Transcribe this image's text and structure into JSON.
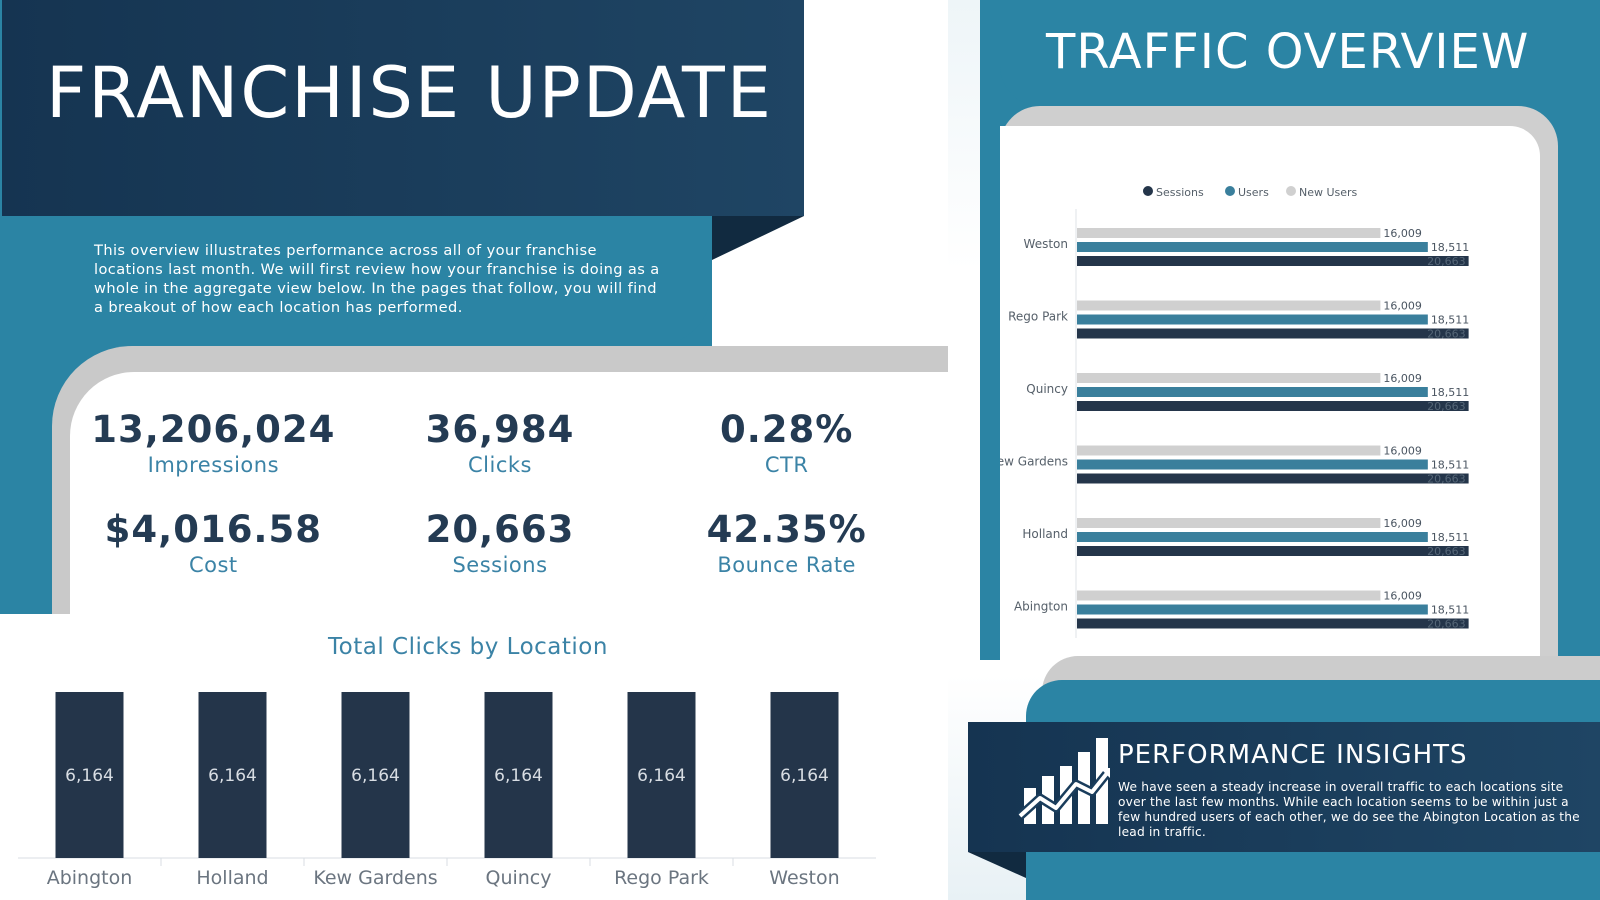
{
  "header": {
    "title": "FRANCHISE UPDATE",
    "intro": "This overview illustrates performance across all of your franchise locations last month. We will first review how your franchise is doing as a whole in the aggregate view below. In the pages that follow, you will find a breakout of how each location has performed."
  },
  "kpis": [
    {
      "value": "13,206,024",
      "label": "Impressions"
    },
    {
      "value": "36,984",
      "label": "Clicks"
    },
    {
      "value": "0.28%",
      "label": "CTR"
    },
    {
      "value": "$4,016.58",
      "label": "Cost"
    },
    {
      "value": "20,663",
      "label": "Sessions"
    },
    {
      "value": "42.35%",
      "label": "Bounce Rate"
    }
  ],
  "traffic": {
    "title": "TRAFFIC OVERVIEW"
  },
  "insights": {
    "title": "PERFORMANCE INSIGHTS",
    "text": "We have seen a steady increase in overall traffic to each locations site over the last few months. While each location seems to be within just a few hundred users of each other, we do see the Abington Location as the lead in traffic.",
    "icon": "growth-chart-icon"
  },
  "colors": {
    "navy": "#24354a",
    "teal": "#3a7f9c",
    "grey": "#d0d0d0",
    "accent": "#2b84a4"
  },
  "chart_data": [
    {
      "type": "bar",
      "title": "Total Clicks by Location",
      "categories": [
        "Abington",
        "Holland",
        "Kew Gardens",
        "Quincy",
        "Rego Park",
        "Weston"
      ],
      "values": [
        6164,
        6164,
        6164,
        6164,
        6164,
        6164
      ],
      "data_labels": [
        "6,164",
        "6,164",
        "6,164",
        "6,164",
        "6,164",
        "6,164"
      ],
      "grid": false
    },
    {
      "type": "bar",
      "orientation": "horizontal",
      "categories": [
        "Weston",
        "Rego Park",
        "Quincy",
        "Kew Gardens",
        "Holland",
        "Abington"
      ],
      "legend": [
        "Sessions",
        "Users",
        "New Users"
      ],
      "legend_position": "top",
      "series": [
        {
          "name": "New Users",
          "values": [
            16009,
            16009,
            16009,
            16009,
            16009,
            16009
          ],
          "labels": [
            "16,009",
            "16,009",
            "16,009",
            "16,009",
            "16,009",
            "16,009"
          ]
        },
        {
          "name": "Users",
          "values": [
            18511,
            18511,
            18511,
            18511,
            18511,
            18511
          ],
          "labels": [
            "18,511",
            "18,511",
            "18,511",
            "18,511",
            "18,511",
            "18,511"
          ]
        },
        {
          "name": "Sessions",
          "values": [
            20663,
            20663,
            20663,
            20663,
            20663,
            20663
          ],
          "labels": [
            "20,663",
            "20,663",
            "20,663",
            "20,663",
            "20,663",
            "20,663"
          ]
        }
      ],
      "xlim": [
        0,
        21000
      ],
      "grid": false
    }
  ]
}
